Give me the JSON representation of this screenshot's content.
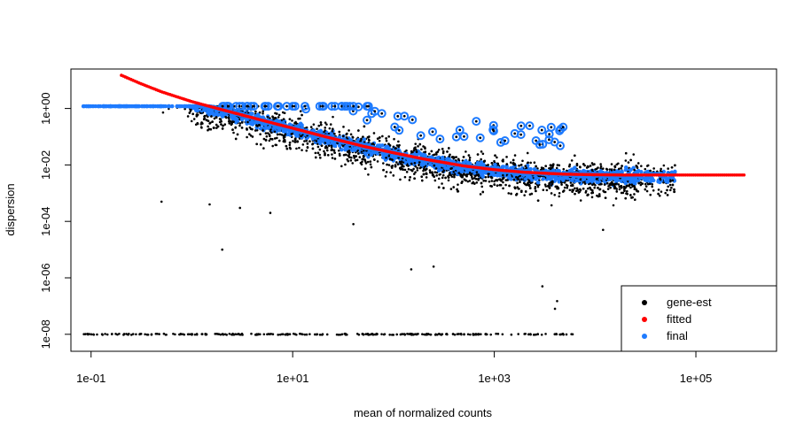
{
  "chart_data": {
    "type": "scatter",
    "title": "",
    "xlabel": "mean of normalized counts",
    "ylabel": "dispersion",
    "x_scale": "log10",
    "y_scale": "log10",
    "xlim": [
      0.0631,
      631000.0
    ],
    "ylim": [
      2.5e-09,
      25
    ],
    "x_ticks": [
      {
        "value": 0.1,
        "label": "1e-01"
      },
      {
        "value": 10,
        "label": "1e+01"
      },
      {
        "value": 1000,
        "label": "1e+03"
      },
      {
        "value": 100000,
        "label": "1e+05"
      }
    ],
    "y_ticks": [
      {
        "value": 1e-08,
        "label": "1e-08"
      },
      {
        "value": 1e-06,
        "label": "1e-06"
      },
      {
        "value": 0.0001,
        "label": "1e-04"
      },
      {
        "value": 0.01,
        "label": "1e-02"
      },
      {
        "value": 1,
        "label": "1e+00"
      }
    ],
    "grid": false,
    "legend_position": "bottom-right",
    "legend": [
      {
        "name": "gene-est",
        "color": "#000000"
      },
      {
        "name": "fitted",
        "color": "#ff0000"
      },
      {
        "name": "final",
        "color": "#1e7bff"
      }
    ],
    "series": [
      {
        "name": "fitted",
        "color": "#ff0000",
        "x": [
          0.2,
          0.3,
          0.5,
          1,
          2,
          5,
          10,
          20,
          50,
          100,
          200,
          500,
          1000,
          2000,
          5000,
          10000,
          20000,
          50000,
          100000,
          200000,
          300000
        ],
        "y": [
          15,
          8,
          3.9,
          1.75,
          0.9,
          0.38,
          0.2,
          0.105,
          0.046,
          0.027,
          0.0162,
          0.0092,
          0.0068,
          0.0055,
          0.0047,
          0.0045,
          0.0044,
          0.0044,
          0.0044,
          0.0044,
          0.0044
        ]
      },
      {
        "name": "final",
        "color": "#1e7bff",
        "description_points": "main band follows fitted curve; values capped at ~1.2 at low counts; outliers circled above",
        "x": [
          0.08,
          0.1,
          0.2,
          0.4,
          1,
          3,
          10,
          30,
          100,
          300,
          1000,
          3000,
          10000,
          30000,
          100000
        ],
        "y": [
          1.2,
          1.2,
          1.2,
          1.2,
          1.1,
          0.5,
          0.2,
          0.09,
          0.04,
          0.019,
          0.0095,
          0.006,
          0.0048,
          0.0045,
          0.0044
        ]
      },
      {
        "name": "gene-est",
        "color": "#000000",
        "x": [
          0.08,
          0.5,
          1,
          3,
          10,
          30,
          100,
          300,
          1000,
          3000,
          10000,
          30000,
          100000
        ],
        "y": [
          1e-08,
          1e-08,
          0.08,
          0.025,
          0.008,
          0.003,
          0.001,
          0.0004,
          0.00018,
          0.0001,
          0.0002,
          0.001,
          0.003
        ]
      }
    ]
  }
}
